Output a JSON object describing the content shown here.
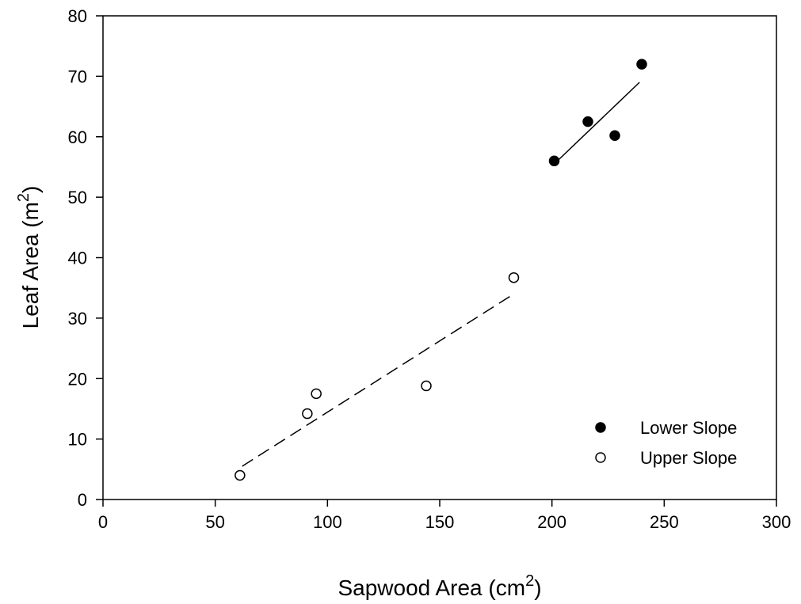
{
  "chart_data": {
    "type": "scatter",
    "xlabel": {
      "prefix": "Sapwood Area (cm",
      "sup": "2",
      "suffix": ")"
    },
    "ylabel": {
      "prefix": "Leaf Area (m",
      "sup": "2",
      "suffix": ")"
    },
    "xlim": [
      0,
      300
    ],
    "ylim": [
      0,
      80
    ],
    "x_ticks": [
      "0",
      "50",
      "100",
      "150",
      "200",
      "250",
      "300"
    ],
    "y_ticks": [
      "0",
      "10",
      "20",
      "30",
      "40",
      "50",
      "60",
      "70",
      "80"
    ],
    "grid": false,
    "legend_position": "bottom-right",
    "series": [
      {
        "name": "Lower Slope",
        "marker": "filled-circle",
        "points": [
          {
            "x": 201,
            "y": 56
          },
          {
            "x": 216,
            "y": 62.5
          },
          {
            "x": 228,
            "y": 60.2
          },
          {
            "x": 240,
            "y": 72
          }
        ],
        "fit_line": {
          "style": "solid",
          "from": {
            "x": 201,
            "y": 55.5
          },
          "to": {
            "x": 239,
            "y": 69
          }
        }
      },
      {
        "name": "Upper Slope",
        "marker": "open-circle",
        "points": [
          {
            "x": 61,
            "y": 4
          },
          {
            "x": 91,
            "y": 14.2
          },
          {
            "x": 95,
            "y": 17.5
          },
          {
            "x": 144,
            "y": 18.8
          },
          {
            "x": 183,
            "y": 36.7
          }
        ],
        "fit_line": {
          "style": "dashed",
          "from": {
            "x": 62,
            "y": 5.5
          },
          "to": {
            "x": 183,
            "y": 34
          }
        }
      }
    ]
  }
}
